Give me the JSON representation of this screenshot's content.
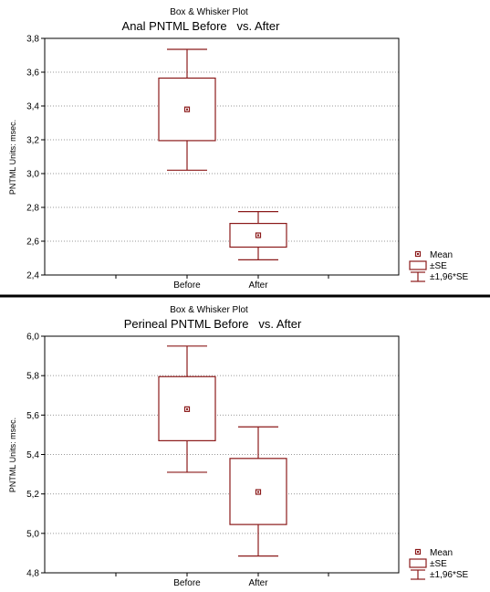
{
  "chart_data": [
    {
      "type": "box",
      "supertitle": "Box & Whisker Plot",
      "title": "Anal PNTML Before   vs. After",
      "ylabel": "PNTML Units: msec.",
      "xlabel": "",
      "categories": [
        "Before",
        "After"
      ],
      "ylim": [
        2.4,
        3.8
      ],
      "yticks": [
        2.4,
        2.6,
        2.8,
        3.0,
        3.2,
        3.4,
        3.6,
        3.8
      ],
      "ytick_labels": [
        "2,4",
        "2,6",
        "2,8",
        "3,0",
        "3,2",
        "3,4",
        "3,6",
        "3,8"
      ],
      "grid": "horizontal dotted",
      "legend_position": "right-bottom",
      "color": "#8b1a1a",
      "stats": [
        {
          "mean": 3.38,
          "se_low": 3.195,
          "se_high": 3.565,
          "ci_low": 3.02,
          "ci_high": 3.735
        },
        {
          "mean": 2.635,
          "se_low": 2.565,
          "se_high": 2.705,
          "ci_low": 2.49,
          "ci_high": 2.775
        }
      ],
      "legend": [
        "Mean",
        "±SE",
        "±1,96*SE"
      ]
    },
    {
      "type": "box",
      "supertitle": "Box & Whisker Plot",
      "title": "Perineal PNTML Before   vs. After",
      "ylabel": "PNTML Units: msec.",
      "xlabel": "",
      "categories": [
        "Before",
        "After"
      ],
      "ylim": [
        4.8,
        6.0
      ],
      "yticks": [
        4.8,
        5.0,
        5.2,
        5.4,
        5.6,
        5.8,
        6.0
      ],
      "ytick_labels": [
        "4,8",
        "5,0",
        "5,2",
        "5,4",
        "5,6",
        "5,8",
        "6,0"
      ],
      "grid": "horizontal dotted",
      "legend_position": "right-bottom",
      "color": "#8b1a1a",
      "stats": [
        {
          "mean": 5.63,
          "se_low": 5.47,
          "se_high": 5.795,
          "ci_low": 5.31,
          "ci_high": 5.95
        },
        {
          "mean": 5.21,
          "se_low": 5.045,
          "se_high": 5.38,
          "ci_low": 4.885,
          "ci_high": 5.54
        }
      ],
      "legend": [
        "Mean",
        "±SE",
        "±1,96*SE"
      ]
    }
  ]
}
